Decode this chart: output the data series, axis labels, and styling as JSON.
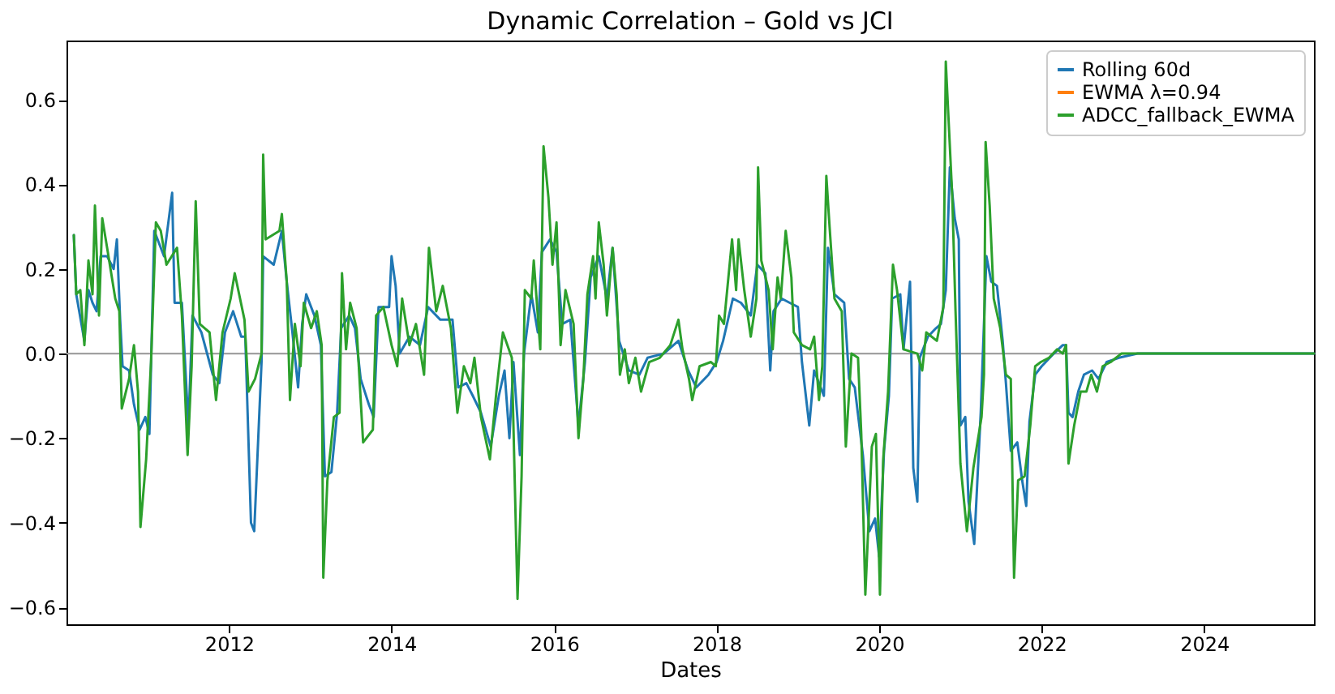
{
  "chart_data": {
    "type": "line",
    "title": "Dynamic Correlation – Gold vs JCI",
    "xlabel": "Dates",
    "xlim": [
      2010.0,
      2025.35
    ],
    "xticks": [
      2012,
      2014,
      2016,
      2018,
      2020,
      2022,
      2024
    ],
    "ylim": [
      -0.64,
      0.74
    ],
    "yticks": [
      {
        "value": -0.6,
        "label": "−0.6"
      },
      {
        "value": -0.4,
        "label": "−0.4"
      },
      {
        "value": -0.2,
        "label": "−0.2"
      },
      {
        "value": 0,
        "label": "0.0"
      },
      0.2,
      0.4,
      0.6
    ],
    "grid": false,
    "legend": "top right",
    "ref_lines": [
      {
        "axis": "y",
        "value": 0,
        "color": "#a0a0a0"
      }
    ],
    "series": [
      {
        "name": "Rolling 60d",
        "color": "#1f77b4",
        "x": [
          2010.09,
          2010.12,
          2010.22,
          2010.27,
          2010.32,
          2010.37,
          2010.42,
          2010.5,
          2010.58,
          2010.62,
          2010.66,
          2010.69,
          2010.77,
          2010.83,
          2010.9,
          2010.97,
          2011.02,
          2011.08,
          2011.2,
          2011.3,
          2011.33,
          2011.42,
          2011.5,
          2011.55,
          2011.66,
          2011.8,
          2011.88,
          2011.95,
          2012.05,
          2012.15,
          2012.2,
          2012.27,
          2012.31,
          2012.4,
          2012.42,
          2012.55,
          2012.65,
          2012.71,
          2012.78,
          2012.85,
          2012.9,
          2012.95,
          2013.05,
          2013.13,
          2013.18,
          2013.26,
          2013.33,
          2013.38,
          2013.48,
          2013.55,
          2013.62,
          2013.72,
          2013.78,
          2013.84,
          2013.97,
          2014.0,
          2014.05,
          2014.1,
          2014.22,
          2014.35,
          2014.45,
          2014.6,
          2014.75,
          2014.82,
          2014.92,
          2015.0,
          2015.1,
          2015.22,
          2015.32,
          2015.39,
          2015.45,
          2015.5,
          2015.58,
          2015.63,
          2015.72,
          2015.8,
          2015.85,
          2015.95,
          2016.03,
          2016.1,
          2016.2,
          2016.3,
          2016.38,
          2016.45,
          2016.55,
          2016.65,
          2016.72,
          2016.8,
          2016.92,
          2017.05,
          2017.15,
          2017.35,
          2017.53,
          2017.65,
          2017.75,
          2017.9,
          2018.0,
          2018.08,
          2018.2,
          2018.3,
          2018.42,
          2018.5,
          2018.6,
          2018.66,
          2018.7,
          2018.8,
          2018.9,
          2019.0,
          2019.05,
          2019.14,
          2019.2,
          2019.32,
          2019.37,
          2019.45,
          2019.57,
          2019.63,
          2019.7,
          2019.8,
          2019.88,
          2019.95,
          2020.0,
          2020.06,
          2020.12,
          2020.16,
          2020.26,
          2020.3,
          2020.38,
          2020.42,
          2020.47,
          2020.5,
          2020.6,
          2020.7,
          2020.76,
          2020.82,
          2020.87,
          2020.93,
          2020.98,
          2021.0,
          2021.06,
          2021.1,
          2021.17,
          2021.25,
          2021.32,
          2021.38,
          2021.45,
          2021.52,
          2021.56,
          2021.62,
          2021.7,
          2021.76,
          2021.81,
          2021.85,
          2021.92,
          2022.0,
          2022.15,
          2022.26,
          2022.3,
          2022.33,
          2022.38,
          2022.45,
          2022.52,
          2022.62,
          2022.7,
          2022.8,
          2022.95,
          2023.18,
          2025.35
        ],
        "values": [
          0.28,
          0.14,
          0.03,
          0.15,
          0.12,
          0.1,
          0.23,
          0.23,
          0.2,
          0.27,
          0.08,
          -0.03,
          -0.04,
          -0.12,
          -0.18,
          -0.15,
          -0.19,
          0.29,
          0.23,
          0.38,
          0.12,
          0.12,
          -0.17,
          0.09,
          0.05,
          -0.05,
          -0.07,
          0.05,
          0.1,
          0.04,
          0.04,
          -0.4,
          -0.42,
          -0.02,
          0.23,
          0.21,
          0.29,
          0.17,
          0.05,
          -0.08,
          0.07,
          0.14,
          0.09,
          0.02,
          -0.29,
          -0.28,
          -0.14,
          0.06,
          0.09,
          0.06,
          -0.06,
          -0.12,
          -0.15,
          0.11,
          0.11,
          0.23,
          0.16,
          0.0,
          0.04,
          0.02,
          0.11,
          0.08,
          0.08,
          -0.08,
          -0.07,
          -0.1,
          -0.14,
          -0.22,
          -0.1,
          -0.04,
          -0.2,
          -0.02,
          -0.24,
          0.0,
          0.14,
          0.05,
          0.24,
          0.27,
          0.24,
          0.07,
          0.08,
          -0.17,
          -0.02,
          0.18,
          0.23,
          0.13,
          0.25,
          0.03,
          -0.04,
          -0.05,
          -0.01,
          0.0,
          0.03,
          -0.04,
          -0.08,
          -0.05,
          -0.02,
          0.03,
          0.13,
          0.12,
          0.09,
          0.21,
          0.19,
          -0.04,
          0.1,
          0.13,
          0.12,
          0.11,
          -0.02,
          -0.17,
          -0.04,
          -0.1,
          0.25,
          0.14,
          0.12,
          -0.06,
          -0.08,
          -0.24,
          -0.42,
          -0.39,
          -0.48,
          -0.23,
          -0.1,
          0.13,
          0.14,
          0.01,
          0.17,
          -0.27,
          -0.35,
          -0.01,
          0.04,
          0.06,
          0.07,
          0.15,
          0.44,
          0.32,
          0.27,
          -0.17,
          -0.15,
          -0.35,
          -0.45,
          -0.14,
          0.23,
          0.17,
          0.16,
          0.03,
          -0.07,
          -0.23,
          -0.21,
          -0.3,
          -0.36,
          -0.16,
          -0.05,
          -0.03,
          0.0,
          0.02,
          0.02,
          -0.14,
          -0.15,
          -0.09,
          -0.05,
          -0.04,
          -0.06,
          -0.02,
          -0.01,
          0.0,
          0.0
        ]
      },
      {
        "name": "EWMA λ=0.94",
        "color": "#ff7f0e"
      },
      {
        "name": "ADCC_fallback_EWMA",
        "color": "#2ca02c",
        "x": [
          2010.09,
          2010.12,
          2010.17,
          2010.22,
          2010.27,
          2010.32,
          2010.35,
          2010.4,
          2010.44,
          2010.5,
          2010.6,
          2010.65,
          2010.68,
          2010.77,
          2010.83,
          2010.88,
          2010.91,
          2010.98,
          2011.04,
          2011.1,
          2011.16,
          2011.23,
          2011.36,
          2011.42,
          2011.49,
          2011.54,
          2011.59,
          2011.64,
          2011.76,
          2011.84,
          2011.92,
          2012.02,
          2012.07,
          2012.19,
          2012.24,
          2012.32,
          2012.4,
          2012.42,
          2012.45,
          2012.62,
          2012.65,
          2012.71,
          2012.75,
          2012.81,
          2012.88,
          2012.92,
          2013.01,
          2013.08,
          2013.14,
          2013.16,
          2013.21,
          2013.29,
          2013.36,
          2013.39,
          2013.44,
          2013.49,
          2013.57,
          2013.65,
          2013.77,
          2013.81,
          2013.9,
          2014.0,
          2014.07,
          2014.13,
          2014.22,
          2014.3,
          2014.4,
          2014.46,
          2014.55,
          2014.63,
          2014.73,
          2014.81,
          2014.89,
          2014.97,
          2015.02,
          2015.1,
          2015.21,
          2015.29,
          2015.37,
          2015.48,
          2015.55,
          2015.6,
          2015.64,
          2015.72,
          2015.75,
          2015.83,
          2015.87,
          2015.93,
          2015.98,
          2016.03,
          2016.08,
          2016.14,
          2016.24,
          2016.3,
          2016.36,
          2016.41,
          2016.48,
          2016.51,
          2016.55,
          2016.61,
          2016.65,
          2016.72,
          2016.77,
          2016.81,
          2016.87,
          2016.92,
          2017.0,
          2017.07,
          2017.17,
          2017.3,
          2017.43,
          2017.53,
          2017.58,
          2017.66,
          2017.7,
          2017.79,
          2017.93,
          2017.99,
          2018.03,
          2018.09,
          2018.19,
          2018.24,
          2018.27,
          2018.34,
          2018.42,
          2018.49,
          2018.51,
          2018.55,
          2018.64,
          2018.69,
          2018.75,
          2018.79,
          2018.85,
          2018.92,
          2018.95,
          2019.05,
          2019.15,
          2019.2,
          2019.26,
          2019.3,
          2019.35,
          2019.39,
          2019.45,
          2019.54,
          2019.59,
          2019.66,
          2019.74,
          2019.78,
          2019.83,
          2019.91,
          2019.96,
          2020.01,
          2020.05,
          2020.11,
          2020.17,
          2020.22,
          2020.3,
          2020.47,
          2020.53,
          2020.58,
          2020.71,
          2020.73,
          2020.79,
          2020.82,
          2020.9,
          2020.94,
          2021.0,
          2021.08,
          2021.16,
          2021.26,
          2021.29,
          2021.31,
          2021.36,
          2021.41,
          2021.49,
          2021.56,
          2021.62,
          2021.66,
          2021.71,
          2021.79,
          2021.86,
          2021.92,
          2021.99,
          2022.09,
          2022.19,
          2022.26,
          2022.3,
          2022.33,
          2022.4,
          2022.48,
          2022.55,
          2022.61,
          2022.68,
          2022.75,
          2022.85,
          2022.98,
          2023.18,
          2025.35
        ],
        "values": [
          0.28,
          0.14,
          0.15,
          0.02,
          0.22,
          0.14,
          0.35,
          0.09,
          0.32,
          0.25,
          0.13,
          0.1,
          -0.13,
          -0.06,
          0.02,
          -0.09,
          -0.41,
          -0.25,
          -0.02,
          0.31,
          0.29,
          0.21,
          0.25,
          0.09,
          -0.24,
          -0.03,
          0.36,
          0.07,
          0.05,
          -0.11,
          0.05,
          0.13,
          0.19,
          0.08,
          -0.09,
          -0.06,
          0.0,
          0.47,
          0.27,
          0.29,
          0.33,
          0.17,
          -0.11,
          0.07,
          -0.03,
          0.12,
          0.06,
          0.1,
          0.02,
          -0.53,
          -0.3,
          -0.15,
          -0.14,
          0.19,
          0.01,
          0.12,
          0.06,
          -0.21,
          -0.18,
          0.09,
          0.11,
          0.02,
          -0.03,
          0.13,
          0.02,
          0.07,
          -0.05,
          0.25,
          0.1,
          0.16,
          0.06,
          -0.14,
          -0.03,
          -0.07,
          -0.01,
          -0.15,
          -0.25,
          -0.09,
          0.05,
          -0.01,
          -0.58,
          -0.29,
          0.15,
          0.13,
          0.22,
          0.01,
          0.49,
          0.37,
          0.21,
          0.31,
          0.02,
          0.15,
          0.07,
          -0.2,
          -0.06,
          0.14,
          0.23,
          0.13,
          0.31,
          0.21,
          0.09,
          0.25,
          0.14,
          -0.05,
          0.01,
          -0.07,
          -0.01,
          -0.09,
          -0.02,
          -0.01,
          0.02,
          0.08,
          0.01,
          -0.06,
          -0.11,
          -0.03,
          -0.02,
          -0.03,
          0.09,
          0.07,
          0.27,
          0.15,
          0.27,
          0.15,
          0.04,
          0.13,
          0.44,
          0.22,
          0.15,
          0.01,
          0.18,
          0.13,
          0.29,
          0.18,
          0.05,
          0.02,
          0.01,
          0.04,
          -0.11,
          -0.03,
          0.42,
          0.3,
          0.13,
          0.1,
          -0.22,
          0.0,
          -0.01,
          -0.19,
          -0.57,
          -0.22,
          -0.19,
          -0.57,
          -0.25,
          -0.09,
          0.21,
          0.15,
          0.01,
          0.0,
          -0.04,
          0.05,
          0.03,
          0.05,
          0.11,
          0.69,
          0.37,
          0.1,
          -0.26,
          -0.42,
          -0.27,
          -0.15,
          -0.05,
          0.5,
          0.35,
          0.13,
          0.06,
          -0.05,
          -0.06,
          -0.53,
          -0.3,
          -0.29,
          -0.17,
          -0.03,
          -0.02,
          -0.01,
          0.01,
          0.0,
          0.02,
          -0.26,
          -0.17,
          -0.09,
          -0.09,
          -0.05,
          -0.09,
          -0.03,
          -0.02,
          0.0,
          0.0,
          0.0
        ]
      }
    ]
  }
}
